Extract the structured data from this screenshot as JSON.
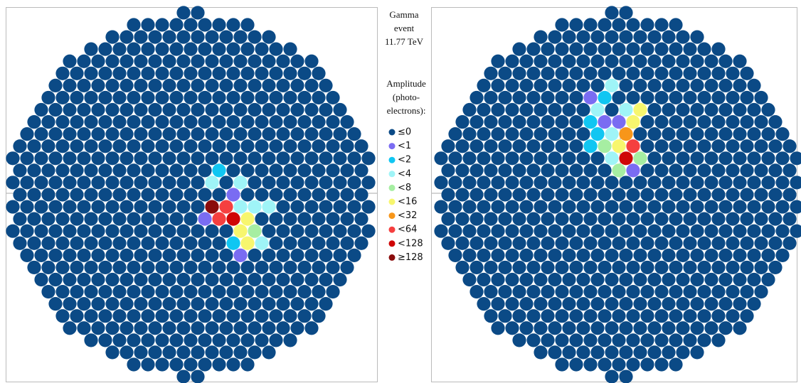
{
  "title_lines": [
    "Gamma",
    "event",
    "11.77  TeV"
  ],
  "legend_title_lines": [
    "Amplitude",
    "(photo-",
    "electrons):"
  ],
  "legend": [
    {
      "label": "≤0",
      "color": "#0b4a86"
    },
    {
      "label": "<1",
      "color": "#7a6cf2"
    },
    {
      "label": "<2",
      "color": "#10c6f2"
    },
    {
      "label": "<4",
      "color": "#9ff4f7"
    },
    {
      "label": "<8",
      "color": "#a6eea2"
    },
    {
      "label": "<16",
      "color": "#f7f66e"
    },
    {
      "label": "<32",
      "color": "#f7961a"
    },
    {
      "label": "<64",
      "color": "#f53f3f"
    },
    {
      "label": "<128",
      "color": "#cf0606"
    },
    {
      "label": "≥128",
      "color": "#8a0c0c"
    }
  ],
  "cameras": [
    {
      "hits": [
        {
          "row": -2,
          "col": 4,
          "level": 2
        },
        {
          "row": -1,
          "col": 3,
          "level": 3
        },
        {
          "row": -1,
          "col": 7,
          "level": 3
        },
        {
          "row": 0,
          "col": 6,
          "level": 1
        },
        {
          "row": 1,
          "col": 3,
          "level": 9
        },
        {
          "row": 1,
          "col": 5,
          "level": 7
        },
        {
          "row": 1,
          "col": 7,
          "level": 3
        },
        {
          "row": 1,
          "col": 9,
          "level": 3
        },
        {
          "row": 1,
          "col": 11,
          "level": 3
        },
        {
          "row": 2,
          "col": 2,
          "level": 1
        },
        {
          "row": 2,
          "col": 4,
          "level": 7
        },
        {
          "row": 2,
          "col": 6,
          "level": 8
        },
        {
          "row": 2,
          "col": 8,
          "level": 5
        },
        {
          "row": 3,
          "col": 7,
          "level": 5
        },
        {
          "row": 3,
          "col": 9,
          "level": 4
        },
        {
          "row": 4,
          "col": 6,
          "level": 2
        },
        {
          "row": 4,
          "col": 8,
          "level": 5
        },
        {
          "row": 4,
          "col": 10,
          "level": 3
        },
        {
          "row": 5,
          "col": 7,
          "level": 1
        }
      ]
    },
    {
      "hits": [
        {
          "row": -9,
          "col": -1,
          "level": 3
        },
        {
          "row": -8,
          "col": -4,
          "level": 1
        },
        {
          "row": -8,
          "col": -2,
          "level": 2
        },
        {
          "row": -7,
          "col": -3,
          "level": 3
        },
        {
          "row": -7,
          "col": 1,
          "level": 3
        },
        {
          "row": -7,
          "col": 3,
          "level": 5
        },
        {
          "row": -6,
          "col": -4,
          "level": 2
        },
        {
          "row": -6,
          "col": -2,
          "level": 1
        },
        {
          "row": -6,
          "col": 0,
          "level": 1
        },
        {
          "row": -6,
          "col": 2,
          "level": 5
        },
        {
          "row": -5,
          "col": -3,
          "level": 2
        },
        {
          "row": -5,
          "col": -1,
          "level": 3
        },
        {
          "row": -5,
          "col": 1,
          "level": 6
        },
        {
          "row": -4,
          "col": -4,
          "level": 2
        },
        {
          "row": -4,
          "col": -2,
          "level": 4
        },
        {
          "row": -4,
          "col": 0,
          "level": 5
        },
        {
          "row": -4,
          "col": 2,
          "level": 7
        },
        {
          "row": -3,
          "col": -1,
          "level": 3
        },
        {
          "row": -3,
          "col": 1,
          "level": 8
        },
        {
          "row": -3,
          "col": 3,
          "level": 4
        },
        {
          "row": -2,
          "col": 0,
          "level": 4
        },
        {
          "row": -2,
          "col": 2,
          "level": 1
        }
      ]
    }
  ]
}
